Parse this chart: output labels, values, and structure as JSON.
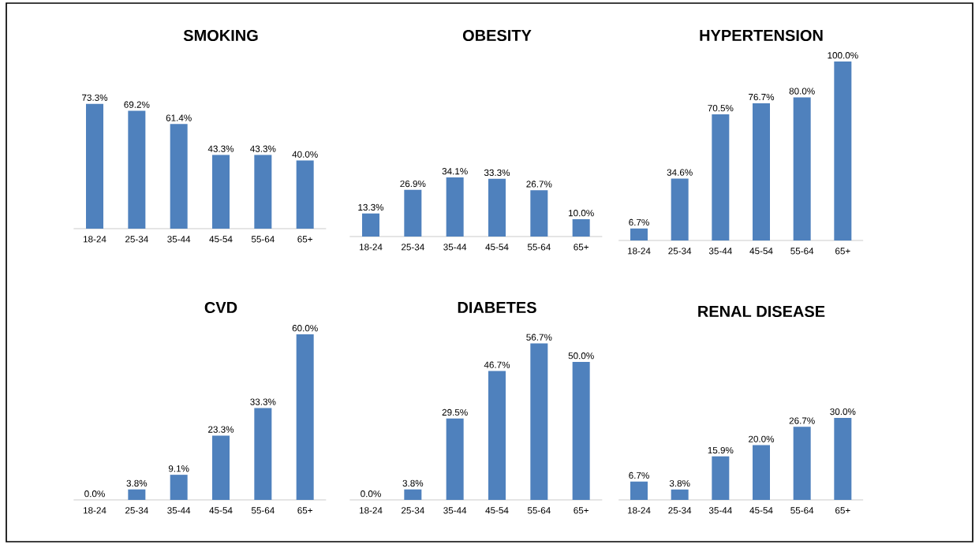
{
  "chart_data": [
    {
      "type": "bar",
      "title": "SMOKING",
      "categories": [
        "18-24",
        "25-34",
        "35-44",
        "45-54",
        "55-64",
        "65+"
      ],
      "values": [
        73.3,
        69.2,
        61.4,
        43.3,
        43.3,
        40.0
      ],
      "value_labels": [
        "73.3%",
        "69.2%",
        "61.4%",
        "43.3%",
        "43.3%",
        "40.0%"
      ],
      "color": "#4f81bd"
    },
    {
      "type": "bar",
      "title": "OBESITY",
      "categories": [
        "18-24",
        "25-34",
        "35-44",
        "45-54",
        "55-64",
        "65+"
      ],
      "values": [
        13.3,
        26.9,
        34.1,
        33.3,
        26.7,
        10.0
      ],
      "value_labels": [
        "13.3%",
        "26.9%",
        "34.1%",
        "33.3%",
        "26.7%",
        "10.0%"
      ],
      "color": "#4f81bd"
    },
    {
      "type": "bar",
      "title": "HYPERTENSION",
      "categories": [
        "18-24",
        "25-34",
        "35-44",
        "45-54",
        "55-64",
        "65+"
      ],
      "values": [
        6.7,
        34.6,
        70.5,
        76.7,
        80.0,
        100.0
      ],
      "value_labels": [
        "6.7%",
        "34.6%",
        "70.5%",
        "76.7%",
        "80.0%",
        "100.0%"
      ],
      "color": "#4f81bd"
    },
    {
      "type": "bar",
      "title": "CVD",
      "categories": [
        "18-24",
        "25-34",
        "35-44",
        "45-54",
        "55-64",
        "65+"
      ],
      "values": [
        0.0,
        3.8,
        9.1,
        23.3,
        33.3,
        60.0
      ],
      "value_labels": [
        "0.0%",
        "3.8%",
        "9.1%",
        "23.3%",
        "33.3%",
        "60.0%"
      ],
      "color": "#4f81bd"
    },
    {
      "type": "bar",
      "title": "DIABETES",
      "categories": [
        "18-24",
        "25-34",
        "35-44",
        "45-54",
        "55-64",
        "65+"
      ],
      "values": [
        0.0,
        3.8,
        29.5,
        46.7,
        56.7,
        50.0
      ],
      "value_labels": [
        "0.0%",
        "3.8%",
        "29.5%",
        "46.7%",
        "56.7%",
        "50.0%"
      ],
      "color": "#4f81bd"
    },
    {
      "type": "bar",
      "title": "RENAL DISEASE",
      "categories": [
        "18-24",
        "25-34",
        "35-44",
        "45-54",
        "55-64",
        "65+"
      ],
      "values": [
        6.7,
        3.8,
        15.9,
        20.0,
        26.7,
        30.0
      ],
      "value_labels": [
        "6.7%",
        "3.8%",
        "15.9%",
        "20.0%",
        "26.7%",
        "30.0%"
      ],
      "color": "#4f81bd"
    }
  ]
}
